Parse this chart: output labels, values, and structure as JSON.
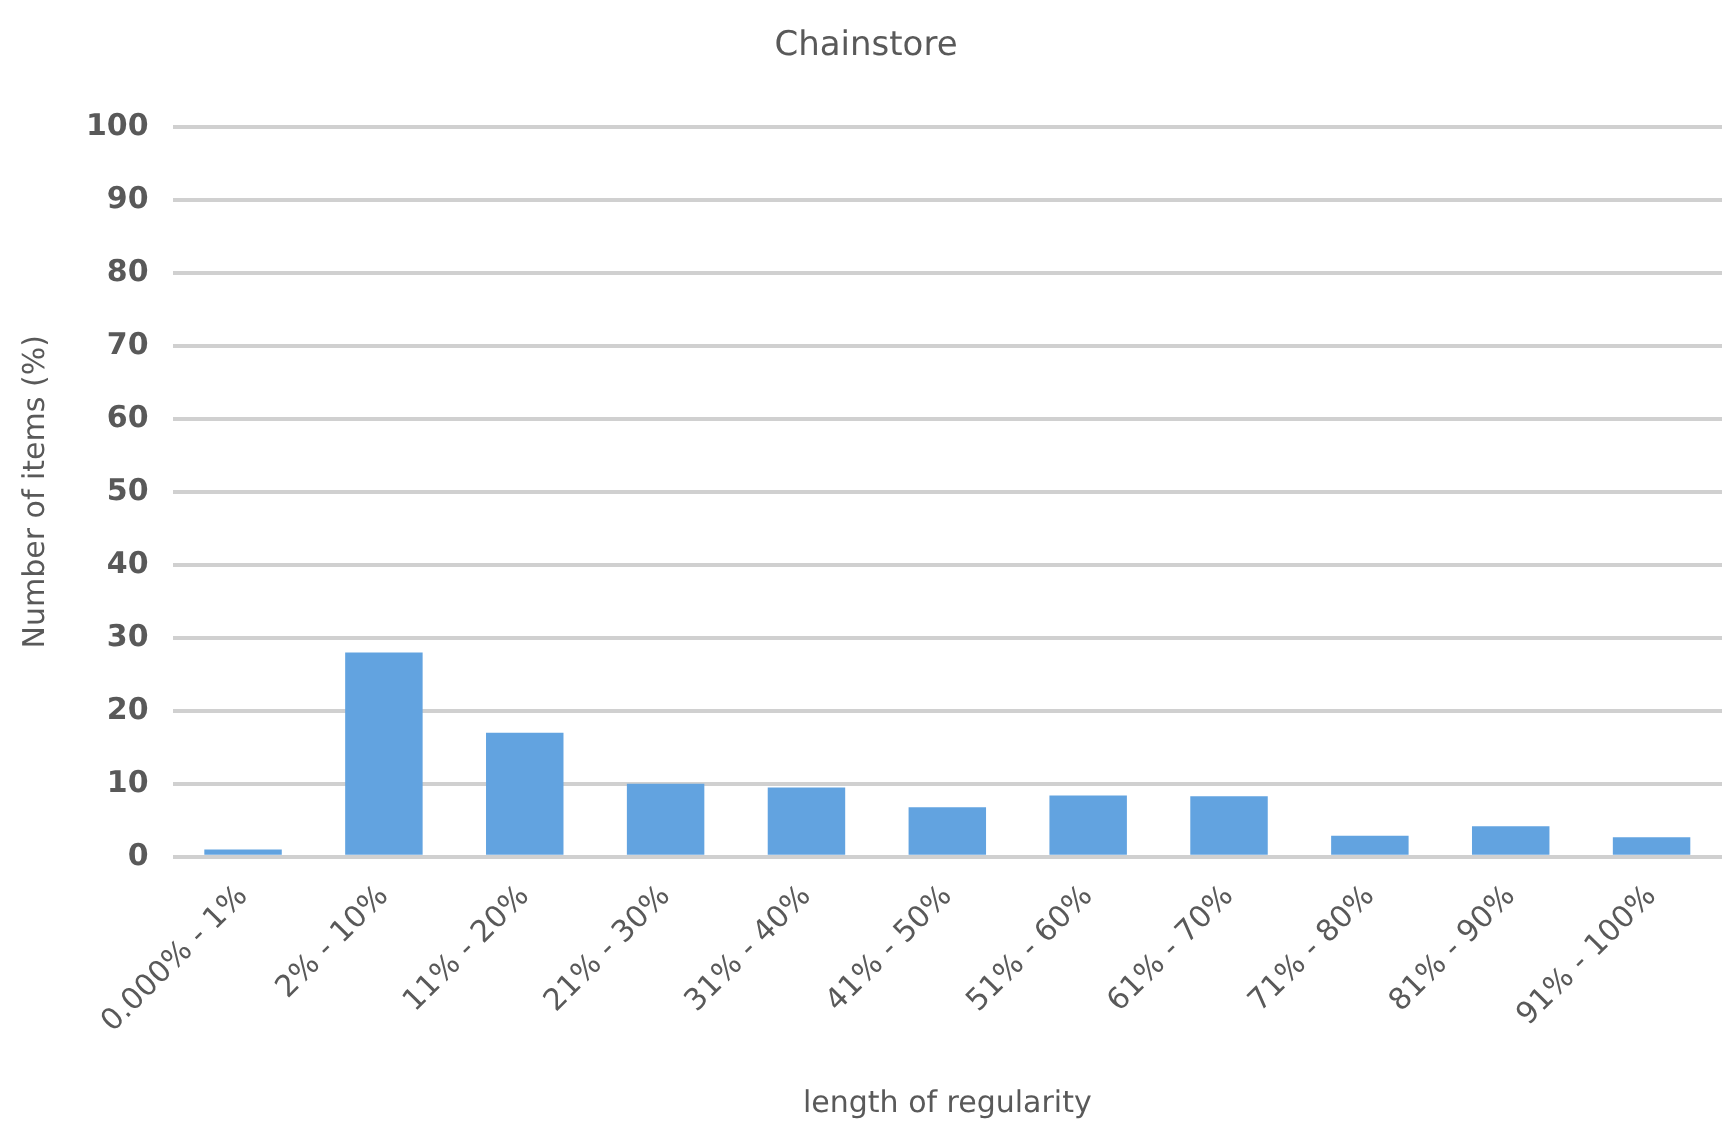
{
  "chart_data": {
    "type": "bar",
    "title": "Chainstore",
    "xlabel": "length of regularity",
    "ylabel": "Number of items (%)",
    "categories": [
      "0.000% - 1%",
      "2% - 10%",
      "11% - 20%",
      "21% - 30%",
      "31% - 40%",
      "41% - 50%",
      "51% - 60%",
      "61% - 70%",
      "71% - 80%",
      "81% - 90%",
      "91% - 100%"
    ],
    "values": [
      1,
      28,
      17,
      10,
      9.5,
      6.8,
      8.4,
      8.3,
      2.9,
      4.2,
      2.7
    ],
    "color": "#62a3e0",
    "ylim": [
      0,
      100
    ],
    "yticks": [
      0,
      10,
      20,
      30,
      40,
      50,
      60,
      70,
      80,
      90,
      100
    ],
    "grid": "y",
    "legend": false
  }
}
